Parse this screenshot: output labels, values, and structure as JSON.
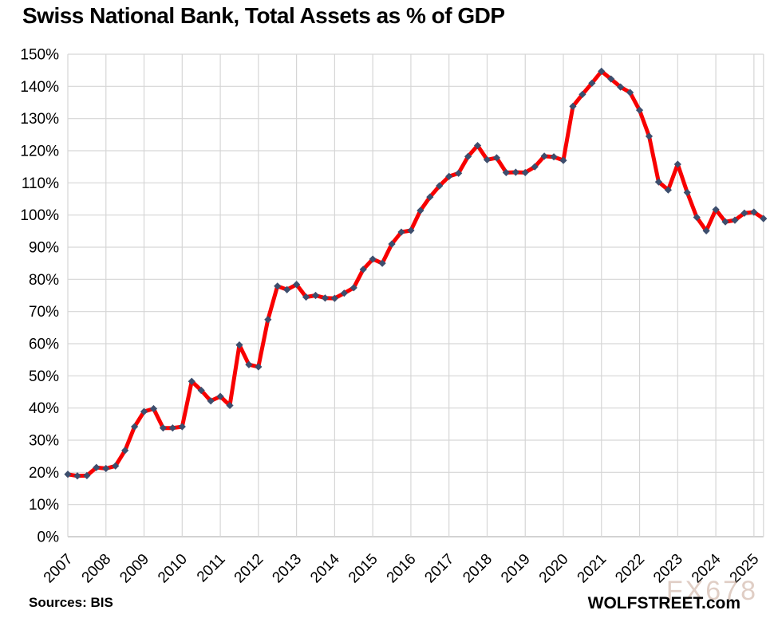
{
  "page": {
    "title": "Swiss National Bank, Total Assets as % of GDP"
  },
  "footer": {
    "sources": "Sources: BIS",
    "brand": "WOLFSTREET.com",
    "watermark": "FX678"
  },
  "chart_data": {
    "type": "line",
    "title": "Swiss National Bank, Total Assets as % of GDP",
    "xlabel": "",
    "ylabel": "",
    "frequency": "quarterly",
    "grid": true,
    "legend": "none",
    "ylim": [
      0,
      150
    ],
    "y_tick_step": 10,
    "y_tick_labels": [
      "0%",
      "10%",
      "20%",
      "30%",
      "40%",
      "50%",
      "60%",
      "70%",
      "80%",
      "90%",
      "100%",
      "110%",
      "120%",
      "130%",
      "140%",
      "150%"
    ],
    "x_tick_labels": [
      "2007",
      "2008",
      "2009",
      "2010",
      "2011",
      "2012",
      "2013",
      "2014",
      "2015",
      "2016",
      "2017",
      "2018",
      "2019",
      "2020",
      "2021",
      "2022",
      "2023",
      "2024",
      "2025"
    ],
    "line_color": "#F80000",
    "marker_color": "#3D4E6D",
    "gridline_color": "#D6D6D6",
    "axis_line_color": "#C4C4C4",
    "series": [
      {
        "name": "Total assets as % of GDP",
        "start": "2007-Q1",
        "values": [
          19.4,
          18.9,
          19.0,
          21.5,
          21.2,
          22.0,
          26.8,
          34.2,
          38.9,
          39.8,
          33.8,
          33.8,
          34.2,
          48.3,
          45.5,
          42.2,
          43.6,
          40.8,
          59.6,
          53.5,
          52.8,
          67.5,
          77.9,
          76.8,
          78.4,
          74.5,
          75.0,
          74.2,
          74.1,
          75.7,
          77.4,
          83.1,
          86.3,
          85.0,
          91.0,
          94.7,
          95.2,
          101.4,
          105.6,
          109.1,
          112.0,
          113.0,
          118.2,
          121.6,
          117.2,
          117.8,
          113.2,
          113.3,
          113.2,
          115.0,
          118.3,
          118.1,
          117.0,
          133.8,
          137.5,
          141.0,
          144.7,
          142.3,
          139.8,
          138.1,
          132.6,
          124.5,
          110.3,
          107.8,
          115.8,
          107.0,
          99.3,
          95.1,
          101.7,
          97.9,
          98.4,
          100.6,
          100.9,
          98.9
        ]
      }
    ]
  }
}
